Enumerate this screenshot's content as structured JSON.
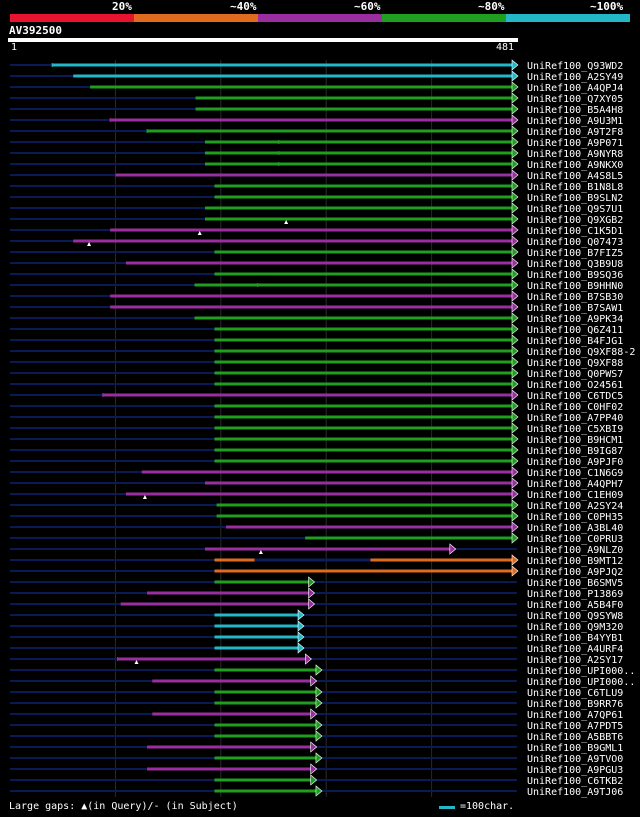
{
  "identity_legend": [
    {
      "label": "20%",
      "color": "#e8142f"
    },
    {
      "label": "~40%",
      "color": "#e06a1e"
    },
    {
      "label": "~60%",
      "color": "#9a2ea0"
    },
    {
      "label": "~80%",
      "color": "#1f9e1f"
    },
    {
      "label": "~100%",
      "color": "#22b8c8"
    }
  ],
  "query": {
    "name": "AV392500",
    "start": "1",
    "end": "481",
    "length": 481
  },
  "hits": [
    {
      "name": "UniRef100_Q93WD2",
      "color": "#22b8c8",
      "start": 40,
      "end": 481,
      "dark": 130,
      "marks": [
        [
          40,
          130
        ]
      ]
    },
    {
      "name": "UniRef100_A2SY49",
      "color": "#22b8c8",
      "start": 60,
      "end": 481
    },
    {
      "name": "UniRef100_A4QPJ4",
      "color": "#1f9e1f",
      "start": 76,
      "end": 481
    },
    {
      "name": "UniRef100_Q7XY05",
      "color": "#1f9e1f",
      "start": 176,
      "end": 481
    },
    {
      "name": "UniRef100_B5A4H8",
      "color": "#1f9e1f",
      "start": 176,
      "end": 481
    },
    {
      "name": "UniRef100_A9U3M1",
      "color": "#9a2ea0",
      "start": 95,
      "end": 481,
      "marks": [
        [
          95,
          190
        ]
      ]
    },
    {
      "name": "UniRef100_A9T2F8",
      "color": "#1f9e1f",
      "start": 130,
      "end": 481,
      "marks": [
        [
          130,
          210
        ]
      ]
    },
    {
      "name": "UniRef100_A9P071",
      "color": "#1f9e1f",
      "start": 185,
      "end": 481,
      "marks": [
        [
          255,
          265
        ]
      ]
    },
    {
      "name": "UniRef100_A9NYR8",
      "color": "#1f9e1f",
      "start": 185,
      "end": 481,
      "marks": [
        [
          255,
          265
        ]
      ]
    },
    {
      "name": "UniRef100_A9NKX0",
      "color": "#1f9e1f",
      "start": 185,
      "end": 481,
      "marks": [
        [
          255,
          265
        ]
      ]
    },
    {
      "name": "UniRef100_A4S8L5",
      "color": "#9a2ea0",
      "start": 100,
      "end": 481
    },
    {
      "name": "UniRef100_B1N8L8",
      "color": "#1f9e1f",
      "start": 194,
      "end": 481
    },
    {
      "name": "UniRef100_B9SLN2",
      "color": "#1f9e1f",
      "start": 194,
      "end": 481
    },
    {
      "name": "UniRef100_Q9S7U1",
      "color": "#1f9e1f",
      "start": 185,
      "end": 481
    },
    {
      "name": "UniRef100_Q9XGB2",
      "color": "#1f9e1f",
      "start": 185,
      "end": 481,
      "tri": 262
    },
    {
      "name": "UniRef100_C1K5D1",
      "color": "#9a2ea0",
      "start": 95,
      "end": 481,
      "tri": 180
    },
    {
      "name": "UniRef100_Q07473",
      "color": "#9a2ea0",
      "start": 60,
      "end": 481,
      "tri": 75
    },
    {
      "name": "UniRef100_B7FIZ5",
      "color": "#1f9e1f",
      "start": 194,
      "end": 481
    },
    {
      "name": "UniRef100_Q3B9U8",
      "color": "#9a2ea0",
      "start": 110,
      "end": 481
    },
    {
      "name": "UniRef100_B9SQ36",
      "color": "#1f9e1f",
      "start": 194,
      "end": 481
    },
    {
      "name": "UniRef100_B9HHN0",
      "color": "#1f9e1f",
      "start": 175,
      "end": 481,
      "marks": [
        [
          235,
          250
        ]
      ]
    },
    {
      "name": "UniRef100_B7SB30",
      "color": "#9a2ea0",
      "start": 95,
      "end": 481
    },
    {
      "name": "UniRef100_B7SAW1",
      "color": "#9a2ea0",
      "start": 95,
      "end": 481
    },
    {
      "name": "UniRef100_A9PK34",
      "color": "#1f9e1f",
      "start": 175,
      "end": 481
    },
    {
      "name": "UniRef100_Q6Z411",
      "color": "#1f9e1f",
      "start": 194,
      "end": 481
    },
    {
      "name": "UniRef100_B4FJG1",
      "color": "#1f9e1f",
      "start": 194,
      "end": 481
    },
    {
      "name": "UniRef100_Q9XF88-2",
      "color": "#1f9e1f",
      "start": 194,
      "end": 481
    },
    {
      "name": "UniRef100_Q9XF88",
      "color": "#1f9e1f",
      "start": 194,
      "end": 481
    },
    {
      "name": "UniRef100_Q0PWS7",
      "color": "#1f9e1f",
      "start": 194,
      "end": 481
    },
    {
      "name": "UniRef100_O24561",
      "color": "#1f9e1f",
      "start": 194,
      "end": 481
    },
    {
      "name": "UniRef100_C6TDC5",
      "color": "#9a2ea0",
      "start": 88,
      "end": 481,
      "marks": [
        [
          88,
          190
        ]
      ]
    },
    {
      "name": "UniRef100_C0HF02",
      "color": "#1f9e1f",
      "start": 194,
      "end": 481
    },
    {
      "name": "UniRef100_A7PP40",
      "color": "#1f9e1f",
      "start": 194,
      "end": 481
    },
    {
      "name": "UniRef100_C5XBI9",
      "color": "#1f9e1f",
      "start": 194,
      "end": 481
    },
    {
      "name": "UniRef100_B9HCM1",
      "color": "#1f9e1f",
      "start": 194,
      "end": 481
    },
    {
      "name": "UniRef100_B9IG87",
      "color": "#1f9e1f",
      "start": 194,
      "end": 481
    },
    {
      "name": "UniRef100_A9PJF0",
      "color": "#1f9e1f",
      "start": 194,
      "end": 481
    },
    {
      "name": "UniRef100_C1N6G9",
      "color": "#9a2ea0",
      "start": 125,
      "end": 481
    },
    {
      "name": "UniRef100_A4QPH7",
      "color": "#9a2ea0",
      "start": 185,
      "end": 481
    },
    {
      "name": "UniRef100_C1EH09",
      "color": "#9a2ea0",
      "start": 110,
      "end": 481,
      "tri": 128
    },
    {
      "name": "UniRef100_A2SY24",
      "color": "#1f9e1f",
      "start": 196,
      "end": 481
    },
    {
      "name": "UniRef100_C0PH35",
      "color": "#1f9e1f",
      "start": 196,
      "end": 481
    },
    {
      "name": "UniRef100_A3BL40",
      "color": "#9a2ea0",
      "start": 205,
      "end": 481
    },
    {
      "name": "UniRef100_C0PRU3",
      "color": "#1f9e1f",
      "start": 280,
      "end": 481
    },
    {
      "name": "UniRef100_A9NLZ0",
      "color": "#9a2ea0",
      "start": 185,
      "end": 422,
      "tri": 238
    },
    {
      "name": "UniRef100_B9MT12",
      "color": "#e06a1e",
      "start": 194,
      "end": 481,
      "dark": 232,
      "darkTo": 342
    },
    {
      "name": "UniRef100_A9PJQ2",
      "color": "#e06a1e",
      "start": 194,
      "end": 481
    },
    {
      "name": "UniRef100_B6SMV5",
      "color": "#1f9e1f",
      "start": 194,
      "end": 288
    },
    {
      "name": "UniRef100_P13869",
      "color": "#9a2ea0",
      "start": 130,
      "end": 288
    },
    {
      "name": "UniRef100_A5B4F0",
      "color": "#9a2ea0",
      "start": 105,
      "end": 288
    },
    {
      "name": "UniRef100_Q9SYW8",
      "color": "#22b8c8",
      "start": 194,
      "end": 278
    },
    {
      "name": "UniRef100_Q9M320",
      "color": "#22b8c8",
      "start": 194,
      "end": 278
    },
    {
      "name": "UniRef100_B4YYB1",
      "color": "#22b8c8",
      "start": 194,
      "end": 278
    },
    {
      "name": "UniRef100_A4URF4",
      "color": "#22b8c8",
      "start": 194,
      "end": 278
    },
    {
      "name": "UniRef100_A2SY17",
      "color": "#9a2ea0",
      "start": 102,
      "end": 285,
      "tri": 120,
      "marks": [
        [
          102,
          135
        ]
      ]
    },
    {
      "name": "UniRef100_UPI000..",
      "color": "#1f9e1f",
      "start": 194,
      "end": 295
    },
    {
      "name": "UniRef100_UPI000..",
      "color": "#9a2ea0",
      "start": 135,
      "end": 290
    },
    {
      "name": "UniRef100_C6TLU9",
      "color": "#1f9e1f",
      "start": 194,
      "end": 295
    },
    {
      "name": "UniRef100_B9RR76",
      "color": "#1f9e1f",
      "start": 194,
      "end": 295
    },
    {
      "name": "UniRef100_A7QP61",
      "color": "#9a2ea0",
      "start": 135,
      "end": 290
    },
    {
      "name": "UniRef100_A7PDT5",
      "color": "#1f9e1f",
      "start": 194,
      "end": 295
    },
    {
      "name": "UniRef100_A5BBT6",
      "color": "#1f9e1f",
      "start": 194,
      "end": 295
    },
    {
      "name": "UniRef100_B9GML1",
      "color": "#9a2ea0",
      "start": 130,
      "end": 290
    },
    {
      "name": "UniRef100_A9TVO0",
      "color": "#1f9e1f",
      "start": 194,
      "end": 295
    },
    {
      "name": "UniRef100_A9PGU3",
      "color": "#9a2ea0",
      "start": 130,
      "end": 290
    },
    {
      "name": "UniRef100_C6TKB2",
      "color": "#1f9e1f",
      "start": 194,
      "end": 290
    },
    {
      "name": "UniRef100_A9TJ06",
      "color": "#1f9e1f",
      "start": 194,
      "end": 295
    }
  ],
  "footer": {
    "gaps_legend": "Large gaps: ▲(in Query)/- (in Subject)",
    "scale_label": "=100char.",
    "scale_chars": 100,
    "scale_color": "#22b8c8"
  },
  "colors": {
    "background": "#000000",
    "track": "#0a1a55",
    "gridline": "#2a2a2a",
    "dark_segment": "#101c60"
  }
}
